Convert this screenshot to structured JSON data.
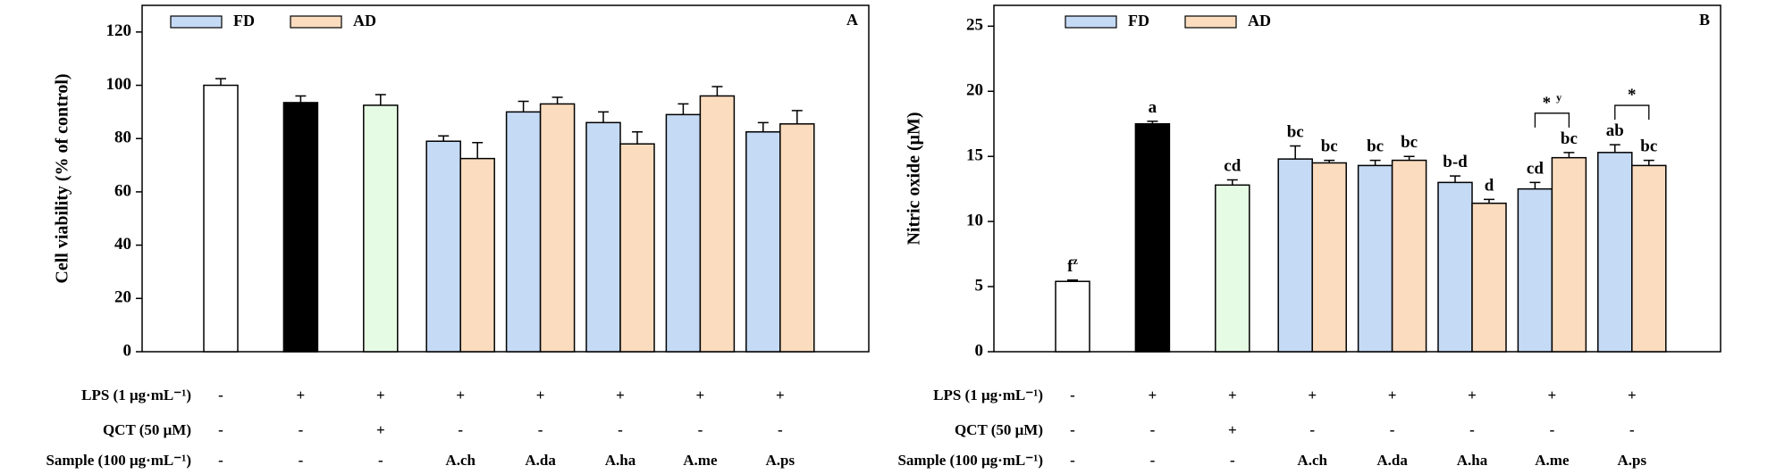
{
  "chart_data": [
    {
      "type": "bar",
      "panel_label": "A",
      "y_label": "Cell viability (% of control)",
      "ylim": [
        0,
        130
      ],
      "yticks": [
        0,
        20,
        40,
        60,
        80,
        100,
        120
      ],
      "row_labels": [
        "LPS (1 μg·mL⁻¹)",
        "QCT (50 μM)",
        "Sample (100 μg·mL⁻¹)"
      ],
      "rows": [
        [
          "-",
          "+",
          "+",
          "+",
          "+",
          "+",
          "+",
          "+"
        ],
        [
          "-",
          "-",
          "+",
          "-",
          "-",
          "-",
          "-",
          "-"
        ],
        [
          "-",
          "-",
          "-",
          "A.ch",
          "A.da",
          "A.ha",
          "A.me",
          "A.ps"
        ]
      ],
      "controls": {
        "values": [
          100,
          93.5,
          92.5
        ],
        "errors": [
          2.5,
          2.5,
          4
        ],
        "colors": [
          "#ffffff",
          "#000000",
          "#e6fbe4"
        ]
      },
      "series": [
        {
          "name": "FD",
          "color": "#c5daf5",
          "values": [
            79,
            90,
            86,
            89,
            82.5
          ],
          "errors": [
            2,
            4,
            4,
            4,
            3.5
          ]
        },
        {
          "name": "AD",
          "color": "#fbdcbe",
          "values": [
            72.5,
            93,
            78,
            96,
            85.5
          ],
          "errors": [
            6,
            2.5,
            4.5,
            3.5,
            5
          ]
        }
      ]
    },
    {
      "type": "bar",
      "panel_label": "B",
      "y_label": "Nitric oxide (μM)",
      "ylim": [
        0,
        26.6
      ],
      "yticks": [
        0,
        5,
        10,
        15,
        20,
        25
      ],
      "row_labels": [
        "LPS (1 μg·mL⁻¹)",
        "QCT (50 μM)",
        "Sample (100 μg·mL⁻¹)"
      ],
      "rows": [
        [
          "-",
          "+",
          "+",
          "+",
          "+",
          "+",
          "+",
          "+"
        ],
        [
          "-",
          "-",
          "+",
          "-",
          "-",
          "-",
          "-",
          "-"
        ],
        [
          "-",
          "-",
          "-",
          "A.ch",
          "A.da",
          "A.ha",
          "A.me",
          "A.ps"
        ]
      ],
      "controls": {
        "values": [
          5.4,
          17.5,
          12.8
        ],
        "errors": [
          0.1,
          0.2,
          0.4
        ],
        "colors": [
          "#ffffff",
          "#000000",
          "#e6fbe4"
        ],
        "letters": [
          "f",
          "a",
          "cd"
        ],
        "letter_sups": [
          "z",
          null,
          null
        ]
      },
      "series": [
        {
          "name": "FD",
          "color": "#c5daf5",
          "values": [
            14.8,
            14.3,
            13,
            12.5,
            15.3
          ],
          "errors": [
            1,
            0.4,
            0.5,
            0.5,
            0.6
          ],
          "letters": [
            "bc",
            "bc",
            "b-d",
            "cd",
            "ab"
          ]
        },
        {
          "name": "AD",
          "color": "#fbdcbe",
          "values": [
            14.5,
            14.7,
            11.4,
            14.9,
            14.3
          ],
          "errors": [
            0.2,
            0.3,
            0.3,
            0.4,
            0.4
          ],
          "letters": [
            "bc",
            "bc",
            "d",
            "bc",
            "bc"
          ]
        }
      ],
      "significance": [
        null,
        null,
        null,
        "*",
        "*"
      ],
      "significance_sups": [
        null,
        null,
        null,
        "y",
        null
      ]
    }
  ]
}
